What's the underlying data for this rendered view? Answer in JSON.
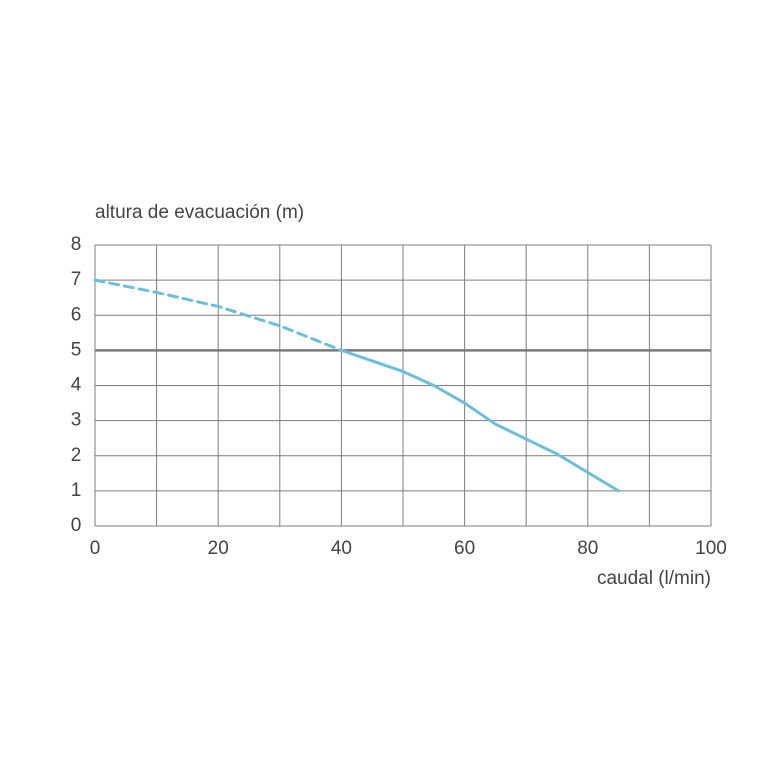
{
  "chart_data": {
    "type": "line",
    "y_label": "altura de evacuación (m)",
    "x_label": "caudal (l/min)",
    "xlim": [
      0,
      100
    ],
    "ylim": [
      0,
      8
    ],
    "xticks": [
      0,
      20,
      40,
      60,
      80,
      100
    ],
    "x_minor_ticks": [
      10,
      30,
      50,
      70,
      90
    ],
    "yticks": [
      0,
      1,
      2,
      3,
      4,
      5,
      6,
      7,
      8
    ],
    "grid": true,
    "hline": 5,
    "hline_color": "#7a7a7a",
    "series": [
      {
        "color": "#6cbfda",
        "dashed": true,
        "x": [
          0,
          10,
          20,
          30,
          40
        ],
        "values": [
          7,
          6.65,
          6.25,
          5.7,
          5
        ]
      },
      {
        "color": "#6cbfda",
        "dashed": false,
        "x": [
          40,
          50,
          55,
          60,
          65,
          75,
          85
        ],
        "values": [
          5,
          4.4,
          4,
          3.5,
          2.9,
          2.05,
          1
        ]
      }
    ]
  }
}
